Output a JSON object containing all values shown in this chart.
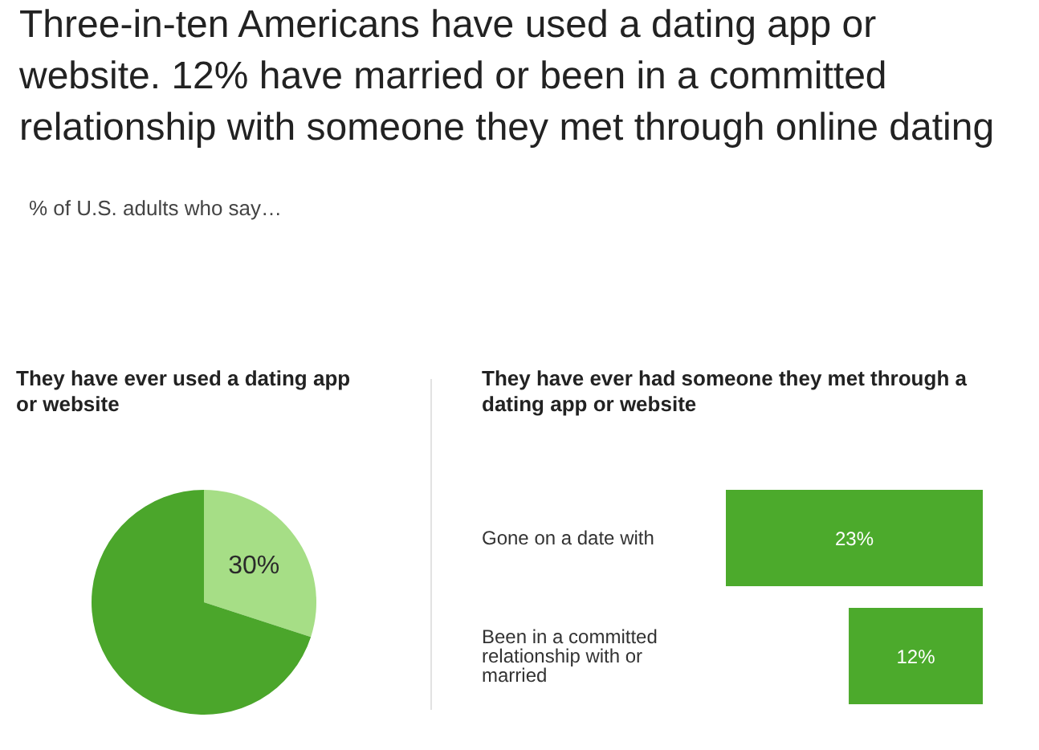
{
  "chart_data": [
    {
      "type": "other",
      "title": "Three-in-ten Americans have used a dating app or website. 12% have married or been in a committed relationship with someone they met through online dating",
      "subtitle": "% of U.S. adults who say…"
    },
    {
      "type": "pie",
      "title": "They have ever used a dating app or website",
      "categories": [
        null,
        null
      ],
      "values": [
        30,
        70
      ],
      "colors": [
        "#a6de86",
        "#4ba62b"
      ],
      "value_labels": [
        "30%",
        null
      ]
    },
    {
      "type": "bar",
      "orientation": "horizontal",
      "title": "They have ever had someone they met through a dating app or website",
      "categories": [
        "Gone on a date with",
        "Been in a committed relationship with or married"
      ],
      "values": [
        23,
        12
      ],
      "color": "#4caa2c",
      "value_labels": [
        "23%",
        "12%"
      ]
    }
  ]
}
